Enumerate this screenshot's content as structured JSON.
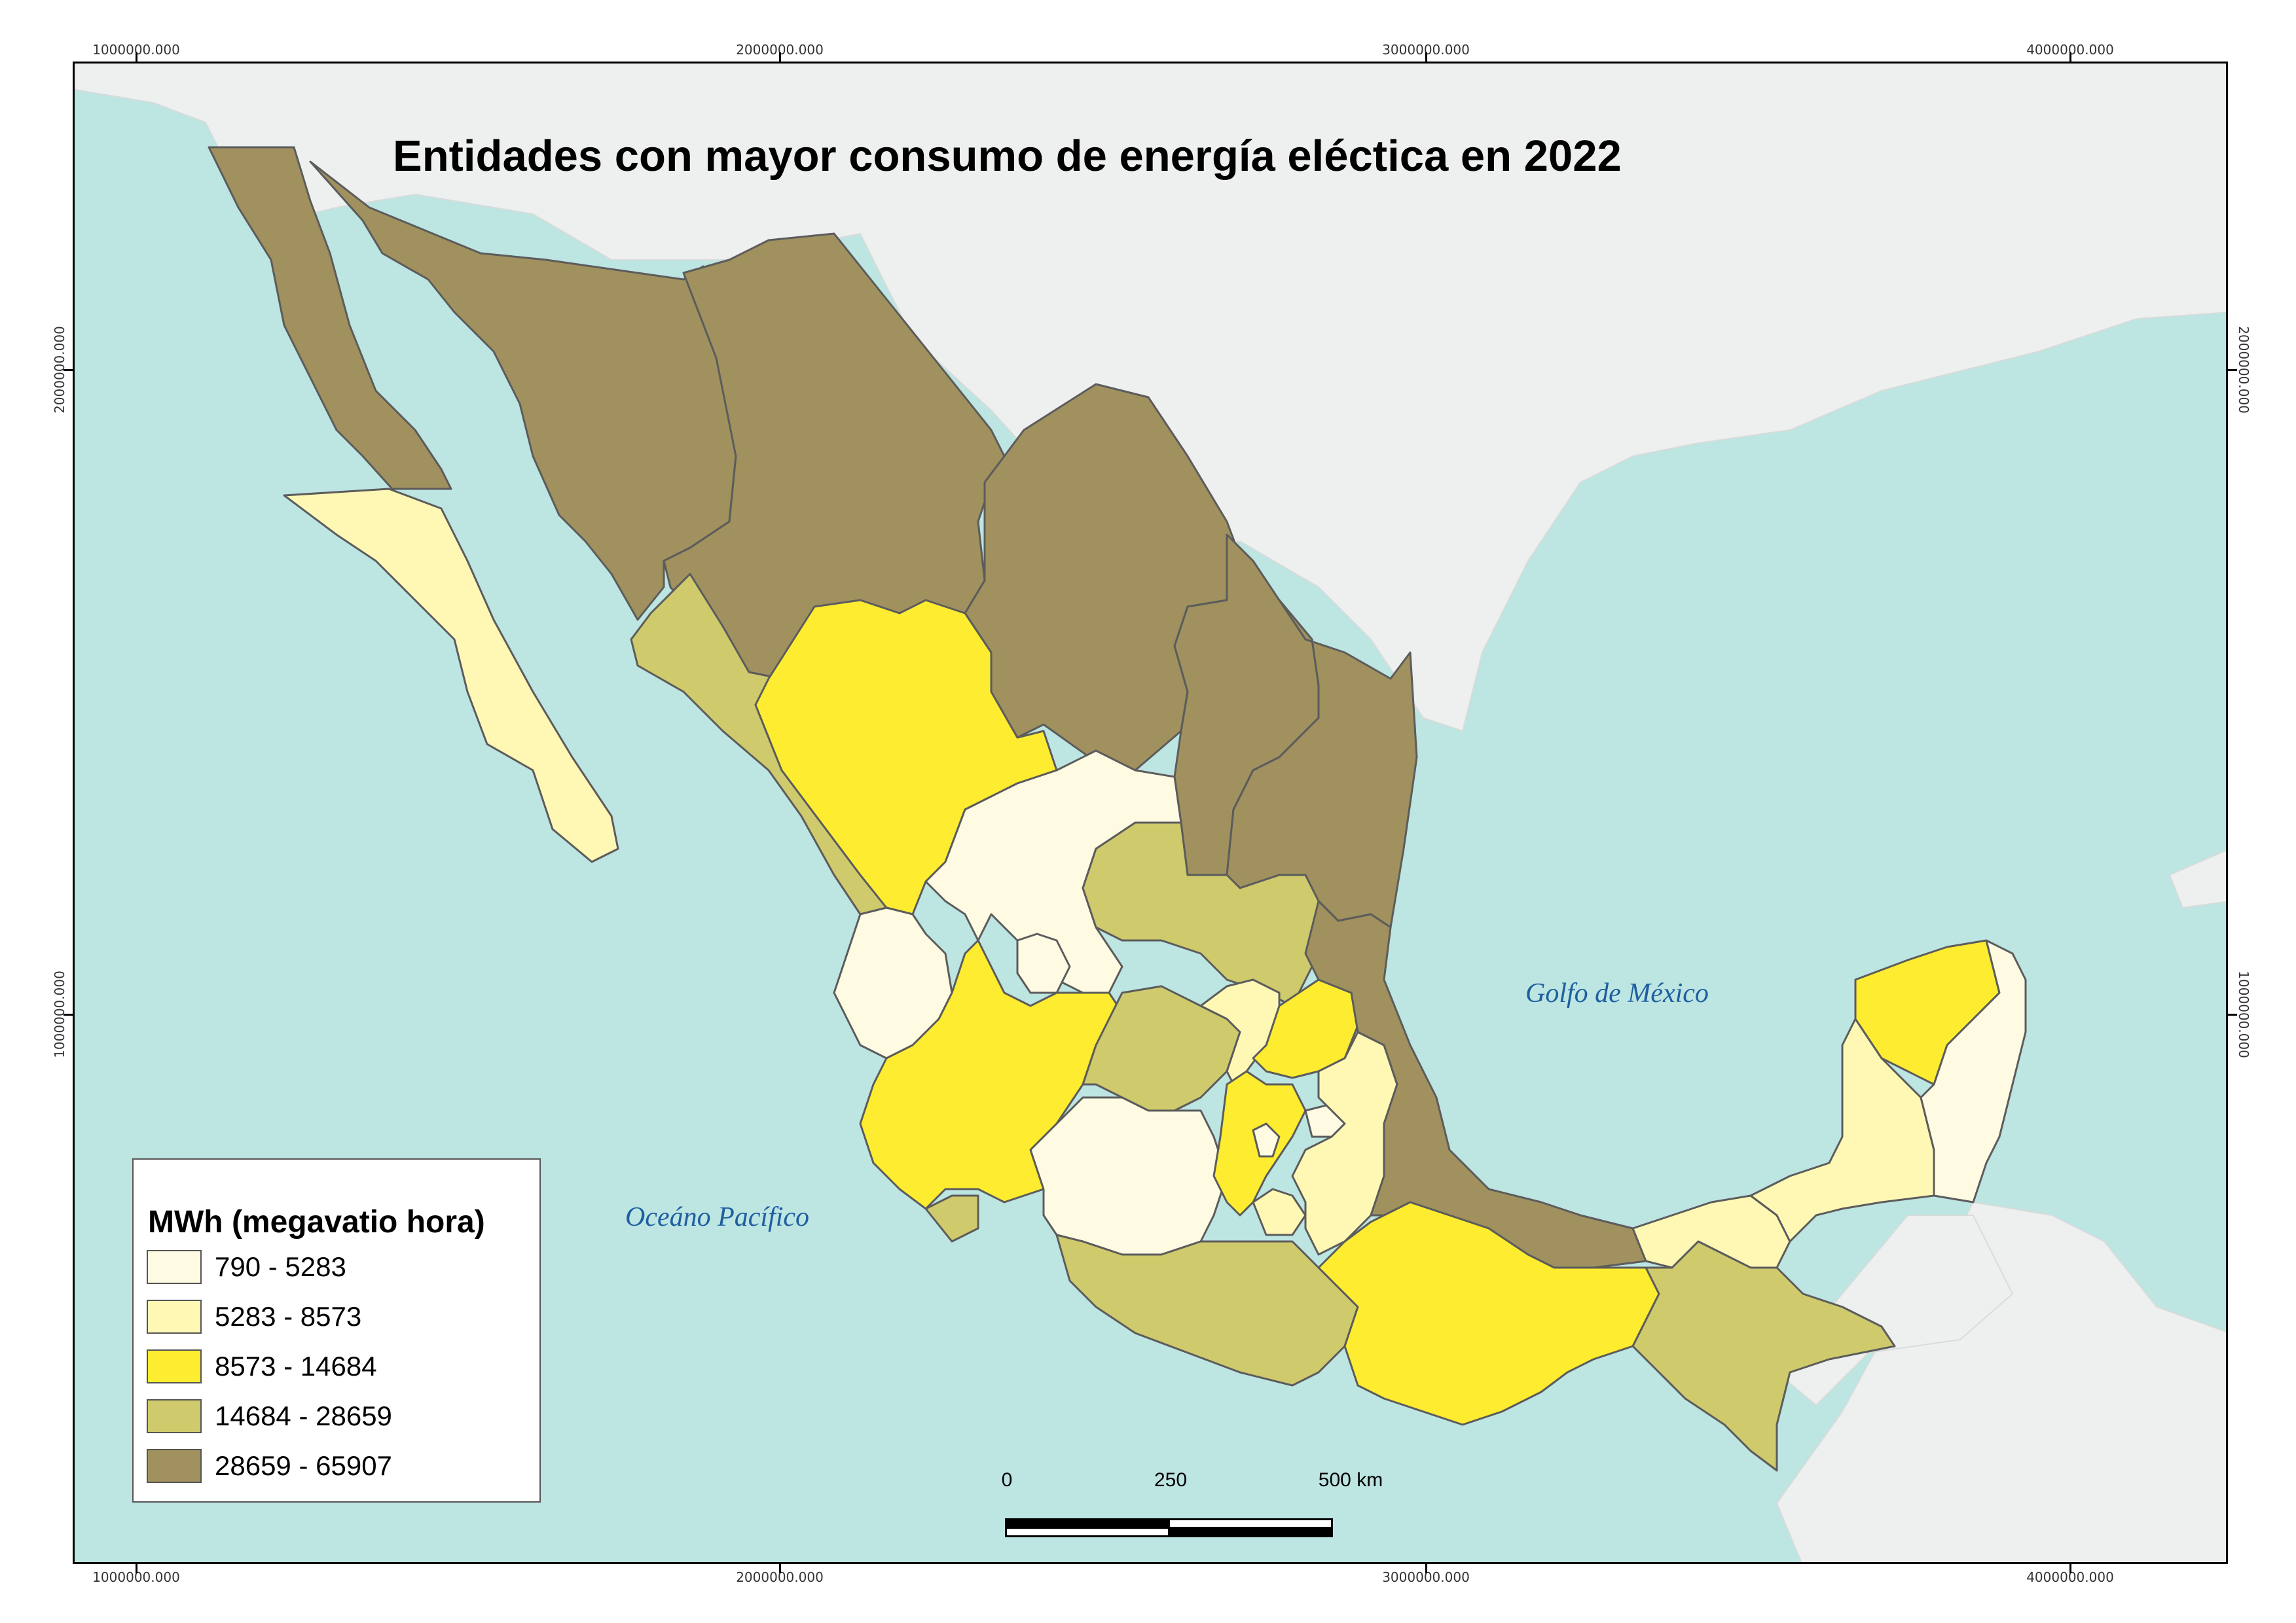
{
  "title": "Entidades con mayor consumo de energía eléctica en 2022",
  "coordinates": {
    "x_labels": [
      "1000000.000",
      "2000000.000",
      "3000000.000",
      "4000000.000"
    ],
    "y_labels": [
      "2000000.000",
      "1000000.000"
    ]
  },
  "seas": {
    "gulf": "Golfo de México",
    "pacific": "Oceáno Pacífico"
  },
  "legend": {
    "title": "MWh (megavatio hora)",
    "classes": [
      {
        "label": "790 - 5283",
        "color": "#fffbe3"
      },
      {
        "label": "5283 - 8573",
        "color": "#fff8b4"
      },
      {
        "label": "8573 - 14684",
        "color": "#fdec2f"
      },
      {
        "label": "14684 - 28659",
        "color": "#cfca6c"
      },
      {
        "label": "28659 - 65907",
        "color": "#a0915e"
      }
    ]
  },
  "scalebar": {
    "labels": [
      "0",
      "250",
      "500 km"
    ]
  },
  "colors": {
    "sea": "#bde5e2",
    "land_outside": "#eef0ef"
  }
}
